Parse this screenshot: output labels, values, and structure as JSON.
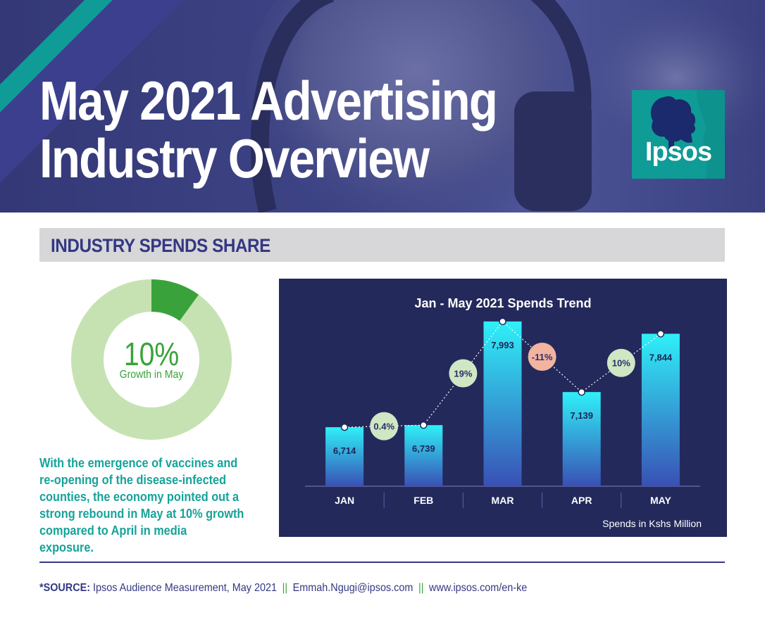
{
  "header": {
    "title_line1": "May 2021 Advertising",
    "title_line2": "Industry Overview",
    "logo_text": "Ipsos"
  },
  "section": {
    "title": "INDUSTRY SPENDS SHARE"
  },
  "donut": {
    "value_label": "10%",
    "caption": "Growth in May",
    "share": 0.1,
    "color_filled": "#3aa23a",
    "color_remaining": "#c6e2b3"
  },
  "summary": "With the emergence of vaccines and re-opening of the disease-infected counties, the economy pointed out a strong rebound in May at 10% growth compared to April in media exposure.",
  "chart_data": {
    "type": "bar",
    "title": "Jan - May 2021 Spends Trend",
    "categories": [
      "JAN",
      "FEB",
      "MAR",
      "APR",
      "MAY"
    ],
    "values": [
      6714,
      6739,
      7993,
      7139,
      7844
    ],
    "value_labels": [
      "6,714",
      "6,739",
      "7,993",
      "7,139",
      "7,844"
    ],
    "changes": [
      "0.4%",
      "19%",
      "-11%",
      "10%"
    ],
    "change_signs": [
      "positive",
      "positive",
      "negative",
      "positive"
    ],
    "ylim": [
      6000,
      8000
    ],
    "ylabel": "",
    "note": "Spends in Kshs Million",
    "colors": {
      "bar_top": "#2ff0f8",
      "bar_bottom": "#3950b5",
      "positive": "#cfe7c3",
      "negative": "#f2b39f"
    }
  },
  "footer": {
    "source_label": "*SOURCE:",
    "source_text": "Ipsos Audience Measurement, May 2021",
    "email": "Emmah.Ngugi@ipsos.com",
    "url": "www.ipsos.com/en-ke",
    "separator": "||"
  }
}
